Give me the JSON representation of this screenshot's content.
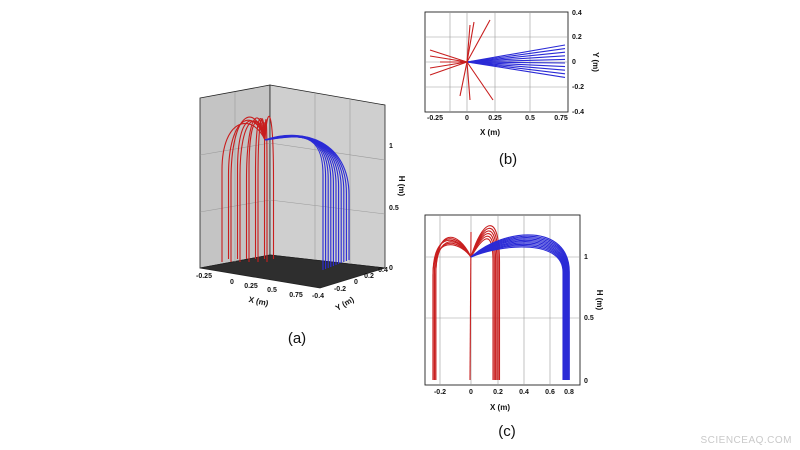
{
  "panels": [
    {
      "caption": "(a)",
      "x_label": "X (m)",
      "y_label": "Y (m)",
      "h_label": "H (m)",
      "x_ticks": [
        "-0.25",
        "0",
        "0.25",
        "0.5",
        "0.75"
      ],
      "y_ticks": [
        "-0.4",
        "-0.2",
        "0",
        "0.2",
        "0.4"
      ],
      "h_ticks": [
        "0",
        "0.5",
        "1"
      ]
    },
    {
      "caption": "(b)",
      "x_label": "X (m)",
      "y_label": "Y (m)",
      "x_ticks": [
        "-0.25",
        "0",
        "0.25",
        "0.5",
        "0.75"
      ],
      "y_ticks": [
        "0.4",
        "0.2",
        "0",
        "-0.2",
        "-0.4"
      ]
    },
    {
      "caption": "(c)",
      "x_label": "X (m)",
      "h_label": "H (m)",
      "x_ticks": [
        "-0.2",
        "0",
        "0.2",
        "0.4",
        "0.6",
        "0.8"
      ],
      "h_ticks": [
        "0",
        "0.5",
        "1"
      ]
    }
  ],
  "watermark": "SCIENCEAQ.COM"
}
